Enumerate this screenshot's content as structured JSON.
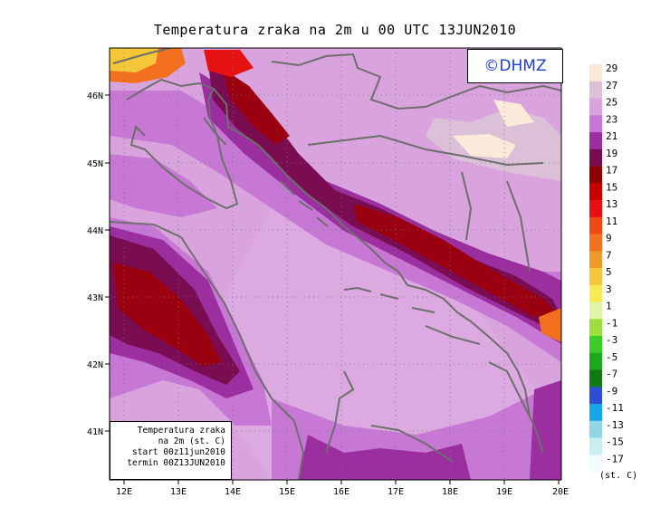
{
  "title": "Temperatura zraka na 2m u 00 UTC 13JUN2010",
  "copyright": "©DHMZ",
  "info_box": {
    "line1": "Temperatura zraka",
    "line2": "na 2m (st. C)",
    "line3": "start 00z11jun2010",
    "line4": "termin 00Z13JUN2010"
  },
  "lat_labels": [
    "46N",
    "45N",
    "44N",
    "43N",
    "42N",
    "41N"
  ],
  "lon_labels": [
    "12E",
    "13E",
    "14E",
    "15E",
    "16E",
    "17E",
    "18E",
    "19E",
    "20E"
  ],
  "legend": {
    "unit": "(st. C)",
    "labels": [
      "29",
      "27",
      "25",
      "23",
      "21",
      "19",
      "17",
      "15",
      "13",
      "11",
      "9",
      "7",
      "5",
      "3",
      "1",
      "-1",
      "-3",
      "-5",
      "-7",
      "-9",
      "-11",
      "-13",
      "-15",
      "-17"
    ],
    "colors": [
      "#fbe9d9",
      "#dcc0d8",
      "#d9a4dd",
      "#c678d4",
      "#9c2fa0",
      "#7a0c52",
      "#8e0000",
      "#c80000",
      "#e61111",
      "#f04a14",
      "#f3701e",
      "#ef9b2a",
      "#f4c63a",
      "#f7ea53",
      "#dff4a6",
      "#9fde3a",
      "#3ccc27",
      "#21a71c",
      "#137a13",
      "#2d4fd6",
      "#19a6e7",
      "#90d6e4",
      "#c9f0f0",
      "#f2fcfc"
    ]
  },
  "colors": {
    "bg": "#d7a1d8",
    "mid": "#c678d4",
    "dark": "#9c2fa0",
    "hot1": "#7a0c52",
    "hot2": "#9a0010",
    "coast": "#6e6e6e"
  }
}
